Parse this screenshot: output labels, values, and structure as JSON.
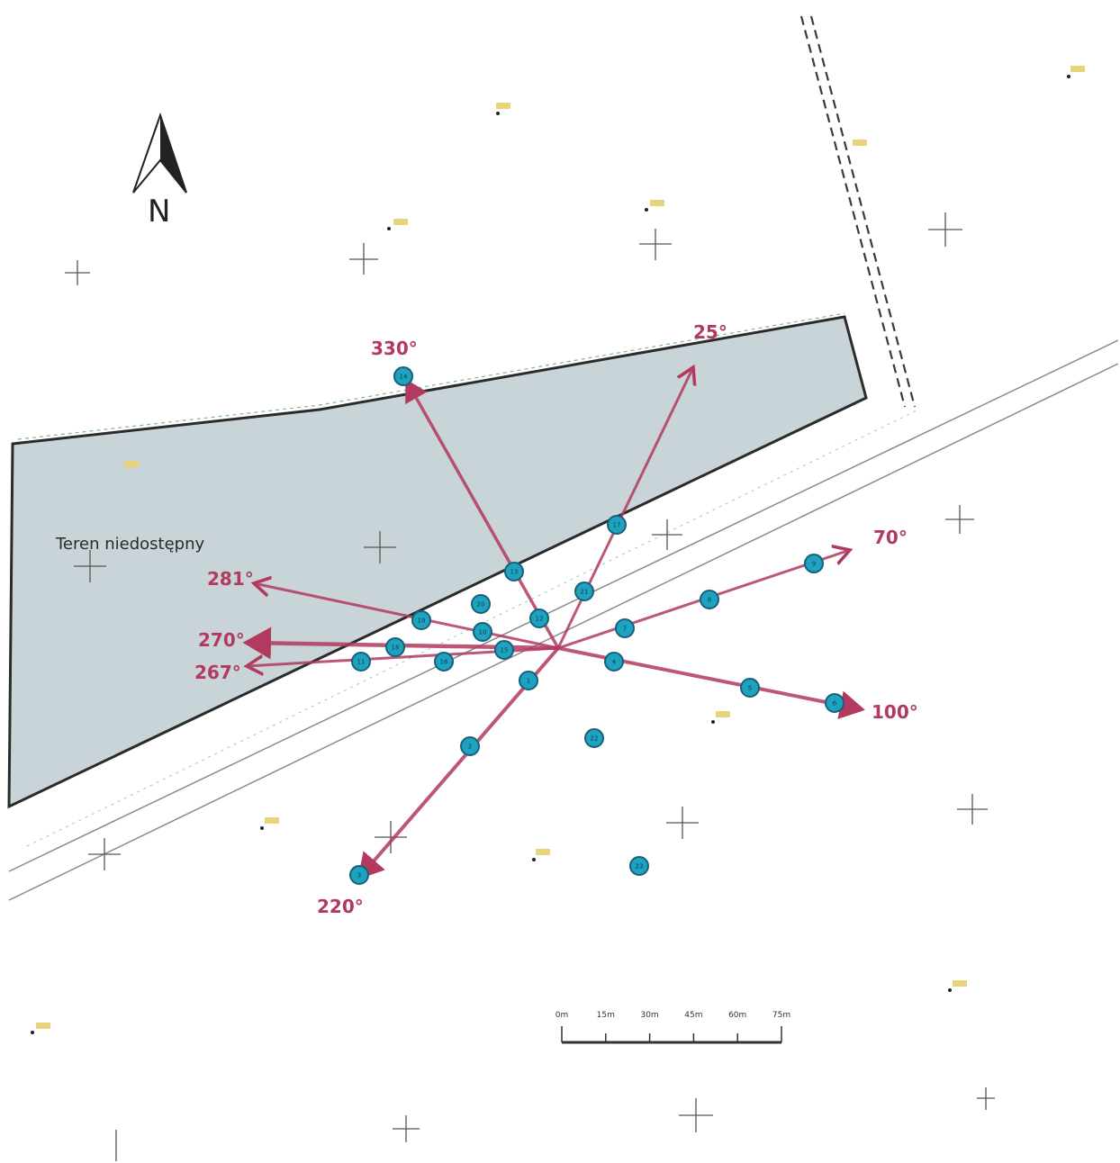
{
  "colors": {
    "area_fill": "#c9d4d8",
    "area_stroke": "#2b2b2b",
    "ray": "#b23a5e",
    "ray_light": "#c7758f",
    "point_fill": "#1fa2bf",
    "point_stroke": "#17607a",
    "text": "#2b2b2b",
    "label": "#b23a5e",
    "height_dot": "#d6bd4a"
  },
  "north_arrow": {
    "letter": "N"
  },
  "area_label": "Teren niedostępny",
  "scale_bar": {
    "ticks": [
      "0m",
      "15m",
      "30m",
      "45m",
      "60m",
      "75m"
    ]
  },
  "bearing_labels": [
    "330°",
    "25°",
    "70°",
    "281°",
    "270°",
    "267°",
    "100°",
    "220°"
  ],
  "points": [
    "1",
    "2",
    "3",
    "4",
    "5",
    "6",
    "7",
    "8",
    "9",
    "10",
    "11",
    "12",
    "13",
    "14",
    "15",
    "16",
    "17",
    "18",
    "19",
    "20",
    "21",
    "22",
    "23",
    "24",
    "25",
    "26",
    "27"
  ]
}
